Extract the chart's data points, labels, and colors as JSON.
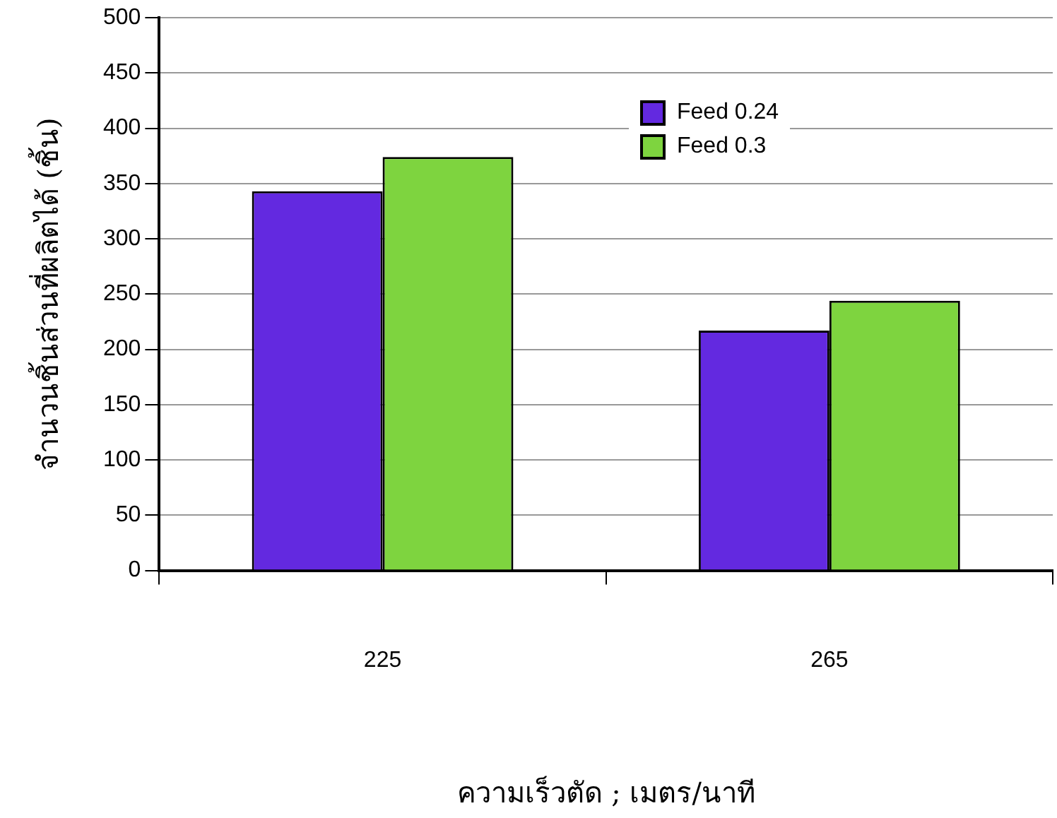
{
  "chart_data": {
    "type": "bar",
    "xlabel": "ความเร็วตัด ; เมตร/นาที",
    "ylabel": "จำนวนชิ้นส่วนที่ผลิตได้ (ชิ้น)",
    "categories": [
      "225",
      "265"
    ],
    "series": [
      {
        "name": "Feed 0.24",
        "color": "#6329e0",
        "values": [
          343,
          217
        ]
      },
      {
        "name": "Feed 0.3",
        "color": "#7ed43f",
        "values": [
          374,
          244
        ]
      }
    ],
    "ylim": [
      0,
      500
    ],
    "yticks": [
      0,
      50,
      100,
      150,
      200,
      250,
      300,
      350,
      400,
      450,
      500
    ],
    "grid": "y",
    "legend": "top"
  }
}
